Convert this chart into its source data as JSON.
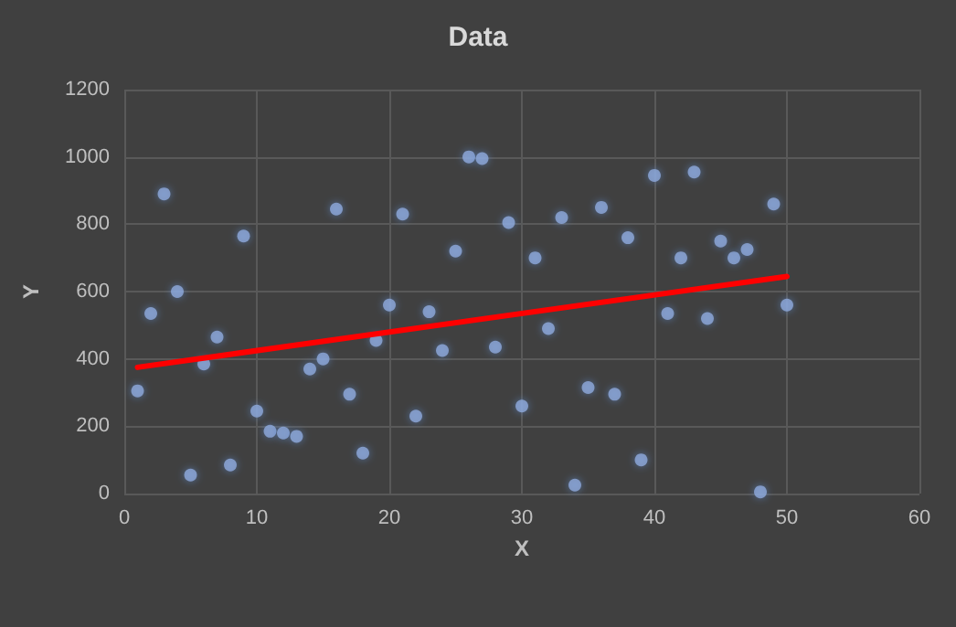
{
  "chart_data": {
    "type": "scatter",
    "title": "Data",
    "xlabel": "X",
    "ylabel": "Y",
    "xlim": [
      0,
      60
    ],
    "xticks": [
      0,
      10,
      20,
      30,
      40,
      50,
      60
    ],
    "ylim": [
      0,
      1200
    ],
    "yticks": [
      0,
      200,
      400,
      600,
      800,
      1000,
      1200
    ],
    "grid": true,
    "marker": "circle",
    "series": [
      {
        "type": "scatter",
        "color": "#8faadc",
        "x": [
          1,
          2,
          3,
          4,
          5,
          6,
          7,
          8,
          9,
          10,
          11,
          12,
          13,
          14,
          15,
          16,
          17,
          18,
          19,
          20,
          21,
          22,
          23,
          24,
          25,
          26,
          27,
          28,
          29,
          30,
          31,
          32,
          33,
          34,
          35,
          36,
          37,
          38,
          39,
          40,
          41,
          42,
          43,
          44,
          45,
          46,
          47,
          48,
          49,
          50
        ],
        "values": [
          305,
          535,
          890,
          600,
          55,
          385,
          465,
          85,
          765,
          245,
          185,
          180,
          170,
          370,
          400,
          845,
          295,
          120,
          455,
          560,
          830,
          230,
          540,
          425,
          720,
          1000,
          995,
          435,
          805,
          260,
          700,
          490,
          820,
          25,
          315,
          850,
          295,
          760,
          100,
          945,
          535,
          700,
          955,
          520,
          750,
          700,
          725,
          5,
          860,
          560
        ]
      },
      {
        "type": "line",
        "color": "#ff0000",
        "x": [
          1,
          50
        ],
        "values": [
          375,
          645
        ],
        "marker": "none"
      }
    ]
  }
}
